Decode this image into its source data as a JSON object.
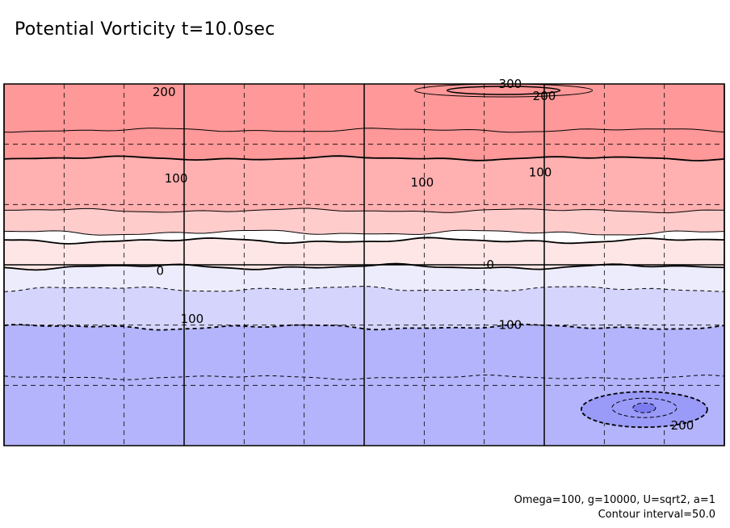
{
  "title": "Potential Vorticity t=10.0sec",
  "footnotes": {
    "params": "Omega=100, g=10000, U=sqrt2, a=1",
    "interval": "Contour interval=50.0"
  },
  "colors": {
    "band_300": "#ff9898",
    "band_250": "#ffb0b0",
    "band_150": "#ffcccc",
    "band_100": "#ffe6e6",
    "band_0": "#ffffff",
    "band_neg50": "#ececfc",
    "band_neg100": "#d4d4fc",
    "band_neg150": "#b4b4fc",
    "band_neg250": "#9a9af8",
    "band_neg300": "#7c7cf0",
    "line": "#000000"
  },
  "chart_data": {
    "type": "contour",
    "title": "Potential Vorticity t=10.0sec",
    "contour_interval": 50.0,
    "x_range": [
      0,
      360
    ],
    "y_range": [
      -90,
      90
    ],
    "levels": [
      {
        "value": 250,
        "style": "solid",
        "latitude": 67,
        "color_key": "band_300"
      },
      {
        "value": 200,
        "style": "solid",
        "latitude": 53,
        "color_key": "band_250",
        "labeled": true
      },
      {
        "value": 150,
        "style": "solid",
        "latitude": 27,
        "color_key": "band_150"
      },
      {
        "value": 100,
        "style": "solid",
        "latitude": 12,
        "color_key": "band_100",
        "labeled": true
      },
      {
        "value": 50,
        "style": "solid",
        "latitude": 16,
        "color_key": "band_0"
      },
      {
        "value": 0,
        "style": "solid",
        "latitude": -1,
        "color_key": "band_neg50",
        "labeled": true
      },
      {
        "value": -50,
        "style": "dashed",
        "latitude": -12,
        "color_key": "band_neg100"
      },
      {
        "value": -100,
        "style": "dashed",
        "latitude": -31,
        "color_key": "band_neg150",
        "labeled": true
      },
      {
        "value": -150,
        "style": "dashed",
        "latitude": -56,
        "color_key": "band_neg150"
      }
    ],
    "contour_labels": [
      {
        "text": "200",
        "x": 80,
        "y": 86
      },
      {
        "text": "300",
        "x": 253,
        "y": 90
      },
      {
        "text": "200",
        "x": 270,
        "y": 84
      },
      {
        "text": "100",
        "x": 86,
        "y": 43
      },
      {
        "text": "100",
        "x": 209,
        "y": 41
      },
      {
        "text": "100",
        "x": 268,
        "y": 46
      },
      {
        "text": "0",
        "x": 78,
        "y": -3
      },
      {
        "text": "0",
        "x": 243,
        "y": 0
      },
      {
        "text": "100",
        "x": 94,
        "y": -27
      },
      {
        "text": "100",
        "x": 253,
        "y": -30
      },
      {
        "text": "200",
        "x": 339,
        "y": -80
      }
    ],
    "features": [
      {
        "name": "southern-vortex",
        "value": -200,
        "x": 320,
        "y": -72
      },
      {
        "name": "northern-maximum",
        "value": 300,
        "x": 244,
        "y": 90
      }
    ],
    "grid": {
      "x_solid": [
        0,
        90,
        180,
        270,
        360
      ],
      "x_dashed_step": 30,
      "y_solid": [
        0
      ],
      "y_dashed_step": 30
    }
  }
}
